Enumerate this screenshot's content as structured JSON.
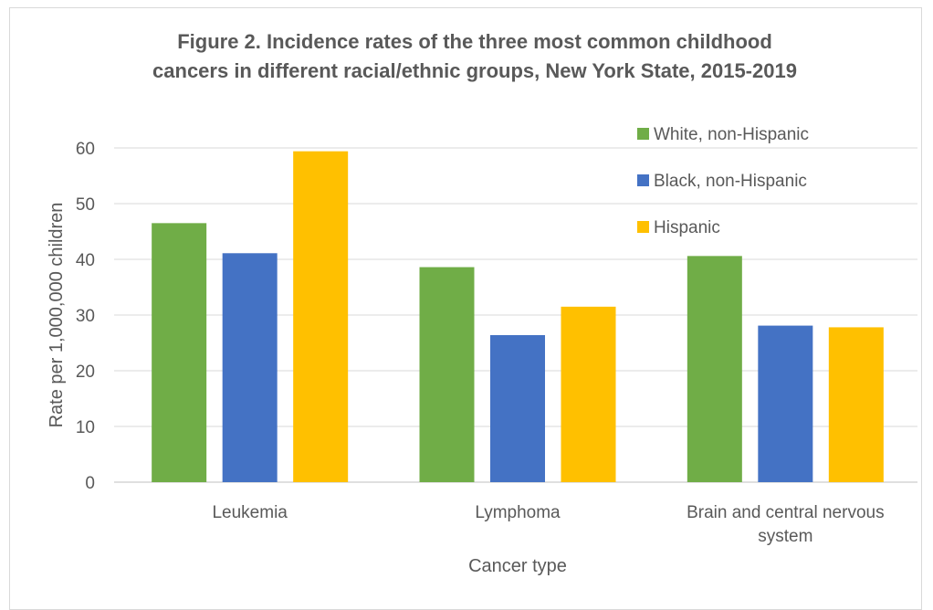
{
  "chart_data": {
    "type": "bar",
    "title_lines": [
      "Figure 2. Incidence rates of the three most common childhood",
      "cancers in different racial/ethnic groups, New York State, 2015-2019"
    ],
    "xlabel": "Cancer type",
    "ylabel": "Rate per 1,000,000 children",
    "ylim": [
      0,
      60
    ],
    "yticks": [
      0,
      10,
      20,
      30,
      40,
      50,
      60
    ],
    "categories": [
      [
        "Leukemia"
      ],
      [
        "Lymphoma"
      ],
      [
        "Brain and central nervous",
        "system"
      ]
    ],
    "series": [
      {
        "name": "White, non-Hispanic",
        "color": "#70ad47",
        "values": [
          46.5,
          38.6,
          40.6
        ]
      },
      {
        "name": "Black, non-Hispanic",
        "color": "#4472c4",
        "values": [
          41.1,
          26.4,
          28.1
        ]
      },
      {
        "name": "Hispanic",
        "color": "#ffc000",
        "values": [
          59.4,
          31.5,
          27.8
        ]
      }
    ],
    "grid": true,
    "legend": "top-right"
  }
}
